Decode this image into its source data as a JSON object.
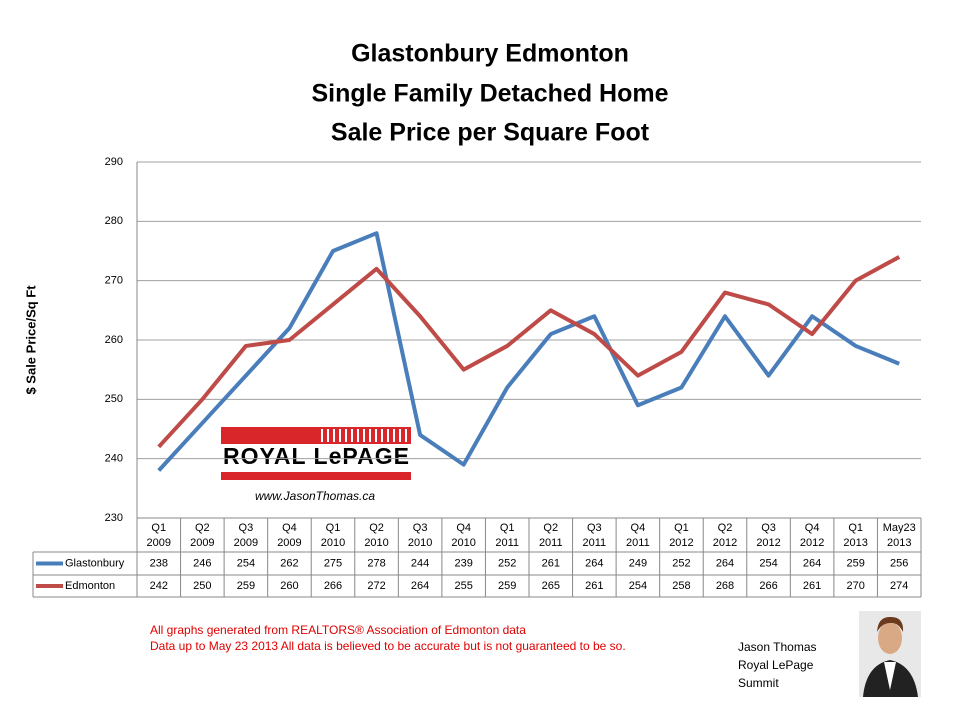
{
  "chart_data": {
    "type": "line",
    "title_lines": [
      "Glastonbury Edmonton",
      "Single Family Detached Home",
      "Sale Price per Square Foot"
    ],
    "y_label": "$ Sale Price/Sq Ft",
    "categories": [
      [
        "Q1",
        "2009"
      ],
      [
        "Q2",
        "2009"
      ],
      [
        "Q3",
        "2009"
      ],
      [
        "Q4",
        "2009"
      ],
      [
        "Q1",
        "2010"
      ],
      [
        "Q2",
        "2010"
      ],
      [
        "Q3",
        "2010"
      ],
      [
        "Q4",
        "2010"
      ],
      [
        "Q1",
        "2011"
      ],
      [
        "Q2",
        "2011"
      ],
      [
        "Q3",
        "2011"
      ],
      [
        "Q4",
        "2011"
      ],
      [
        "Q1",
        "2012"
      ],
      [
        "Q2",
        "2012"
      ],
      [
        "Q3",
        "2012"
      ],
      [
        "Q4",
        "2012"
      ],
      [
        "Q1",
        "2013"
      ],
      [
        "May23",
        "2013"
      ]
    ],
    "series": [
      {
        "name": "Glastonbury",
        "color": "#4a7ebb",
        "values": [
          238,
          246,
          254,
          262,
          275,
          278,
          244,
          239,
          252,
          261,
          264,
          249,
          252,
          264,
          254,
          264,
          259,
          256
        ]
      },
      {
        "name": "Edmonton",
        "color": "#be4b48",
        "values": [
          242,
          250,
          259,
          260,
          266,
          272,
          264,
          255,
          259,
          265,
          261,
          254,
          258,
          268,
          266,
          261,
          270,
          274
        ]
      }
    ],
    "ylim": [
      230,
      290
    ],
    "yticks": [
      230,
      240,
      250,
      260,
      270,
      280,
      290
    ],
    "grid": true,
    "logo": {
      "name": "ROYAL LePAGE",
      "url": "www.JasonThomas.ca"
    },
    "notes": [
      "All graphs generated from REALTORS® Association of Edmonton data",
      "Data up to  May 23  2013  All data is believed to be accurate but is not guaranteed to be so."
    ],
    "agent": [
      "Jason Thomas",
      "Royal LePage",
      "Summit"
    ]
  }
}
